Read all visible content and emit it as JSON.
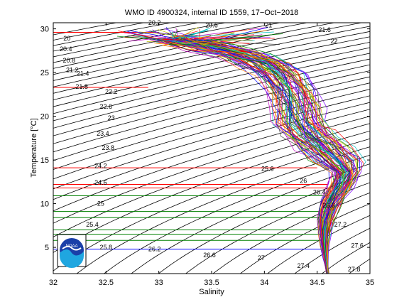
{
  "chart_data": {
    "type": "line",
    "title": "WMO ID 4900324, internal ID 1559, 17−Oct−2018",
    "xlabel": "Salinity",
    "ylabel": "Temperature [°C]",
    "xlim": [
      32,
      35
    ],
    "ylim": [
      2,
      30.7
    ],
    "xticks": [
      "32",
      "32.5",
      "33",
      "33.5",
      "34",
      "34.5",
      "35"
    ],
    "yticks": [
      "5",
      "10",
      "15",
      "20",
      "25",
      "30"
    ],
    "grid": false,
    "logo_text": "NOAA",
    "density_contours": {
      "levels": [
        20,
        20.2,
        20.4,
        20.6,
        20.8,
        21,
        21.2,
        21.4,
        21.6,
        21.8,
        22,
        22.2,
        22.4,
        22.6,
        22.8,
        23,
        23.2,
        23.4,
        23.6,
        23.8,
        24,
        24.2,
        24.4,
        24.6,
        24.8,
        25,
        25.2,
        25.4,
        25.6,
        25.8,
        26,
        26.2,
        26.4,
        26.6,
        26.8,
        27,
        27.2,
        27.4,
        27.6,
        27.8
      ],
      "labels": [
        {
          "text": "20",
          "s": 32.13,
          "t": 28.9
        },
        {
          "text": "20.4",
          "s": 32.12,
          "t": 27.7
        },
        {
          "text": "20.8",
          "s": 32.15,
          "t": 26.4
        },
        {
          "text": "21.2",
          "s": 32.18,
          "t": 25.3
        },
        {
          "text": "21.4",
          "s": 32.28,
          "t": 24.9
        },
        {
          "text": "21.8",
          "s": 32.27,
          "t": 23.4
        },
        {
          "text": "22.2",
          "s": 32.55,
          "t": 22.8
        },
        {
          "text": "22.6",
          "s": 32.5,
          "t": 21.1
        },
        {
          "text": "23",
          "s": 32.55,
          "t": 19.8
        },
        {
          "text": "23.4",
          "s": 32.47,
          "t": 18.0
        },
        {
          "text": "23.8",
          "s": 32.52,
          "t": 16.4
        },
        {
          "text": "24.2",
          "s": 32.45,
          "t": 14.3
        },
        {
          "text": "24.6",
          "s": 32.45,
          "t": 12.4
        },
        {
          "text": "25",
          "s": 32.45,
          "t": 10.0
        },
        {
          "text": "25.4",
          "s": 32.37,
          "t": 7.6
        },
        {
          "text": "25.8",
          "s": 32.5,
          "t": 5.0
        },
        {
          "text": "26.2",
          "s": 32.96,
          "t": 4.8
        },
        {
          "text": "26.6",
          "s": 33.48,
          "t": 4.1
        },
        {
          "text": "27",
          "s": 33.97,
          "t": 3.8
        },
        {
          "text": "27.4",
          "s": 34.37,
          "t": 2.9
        },
        {
          "text": "27.8",
          "s": 34.85,
          "t": 2.5
        },
        {
          "text": "27.6",
          "s": 34.88,
          "t": 5.2
        },
        {
          "text": "27.2",
          "s": 34.72,
          "t": 7.6
        },
        {
          "text": "26.8",
          "s": 34.61,
          "t": 9.8
        },
        {
          "text": "26.4",
          "s": 34.52,
          "t": 11.3
        },
        {
          "text": "26",
          "s": 34.37,
          "t": 12.6
        },
        {
          "text": "25.6",
          "s": 34.03,
          "t": 14.0
        },
        {
          "text": "20.2",
          "s": 32.96,
          "t": 30.7
        },
        {
          "text": "20.6",
          "s": 33.5,
          "t": 30.4
        },
        {
          "text": "21",
          "s": 34.04,
          "t": 30.4
        },
        {
          "text": "21.6",
          "s": 34.57,
          "t": 29.9
        },
        {
          "text": "22",
          "s": 34.66,
          "t": 28.6
        }
      ]
    },
    "horizontal_lines": [
      {
        "color": "#ff0000",
        "t": 29.6,
        "s_from": 32.0,
        "s_to": 33.0
      },
      {
        "color": "#ff0000",
        "t": 23.3,
        "s_from": 32.0,
        "s_to": 32.9
      },
      {
        "color": "#ff0000",
        "t": 14.1,
        "s_from": 32.0,
        "s_to": 34.5
      },
      {
        "color": "#ff0000",
        "t": 12.2,
        "s_from": 32.0,
        "s_to": 34.6
      },
      {
        "color": "#ff0000",
        "t": 11.8,
        "s_from": 32.0,
        "s_to": 34.6
      },
      {
        "color": "#008000",
        "t": 10.9,
        "s_from": 32.0,
        "s_to": 34.7
      },
      {
        "color": "#008000",
        "t": 9.1,
        "s_from": 32.0,
        "s_to": 34.6
      },
      {
        "color": "#008000",
        "t": 8.4,
        "s_from": 32.0,
        "s_to": 34.6
      },
      {
        "color": "#008000",
        "t": 7.0,
        "s_from": 32.0,
        "s_to": 34.6
      },
      {
        "color": "#008000",
        "t": 6.5,
        "s_from": 32.0,
        "s_to": 34.6
      },
      {
        "color": "#008000",
        "t": 5.8,
        "s_from": 32.0,
        "s_to": 34.6
      },
      {
        "color": "#0000ff",
        "t": 4.8,
        "s_from": 32.0,
        "s_to": 34.6
      }
    ],
    "profile_colors": [
      "#0000ff",
      "#ff0000",
      "#008000",
      "#00bfbf",
      "#bf00bf",
      "#bfbf00",
      "#404040",
      "#ff7f00",
      "#7f00ff"
    ],
    "profile_mean": [
      {
        "s": 32.8,
        "t": 29.1
      },
      {
        "s": 33.2,
        "t": 28.6
      },
      {
        "s": 33.5,
        "t": 27.9
      },
      {
        "s": 33.8,
        "t": 27.1
      },
      {
        "s": 34.0,
        "t": 26.0
      },
      {
        "s": 34.15,
        "t": 24.6
      },
      {
        "s": 34.25,
        "t": 22.9
      },
      {
        "s": 34.3,
        "t": 21.2
      },
      {
        "s": 34.33,
        "t": 19.5
      },
      {
        "s": 34.42,
        "t": 18.0
      },
      {
        "s": 34.55,
        "t": 16.5
      },
      {
        "s": 34.68,
        "t": 15.0
      },
      {
        "s": 34.77,
        "t": 13.6
      },
      {
        "s": 34.74,
        "t": 12.6
      },
      {
        "s": 34.7,
        "t": 11.6
      },
      {
        "s": 34.65,
        "t": 10.5
      },
      {
        "s": 34.61,
        "t": 9.3
      },
      {
        "s": 34.58,
        "t": 8.0
      },
      {
        "s": 34.57,
        "t": 6.5
      },
      {
        "s": 34.57,
        "t": 5.2
      },
      {
        "s": 34.58,
        "t": 4.0
      },
      {
        "s": 34.59,
        "t": 2.8
      },
      {
        "s": 34.6,
        "t": 2.0
      }
    ]
  }
}
